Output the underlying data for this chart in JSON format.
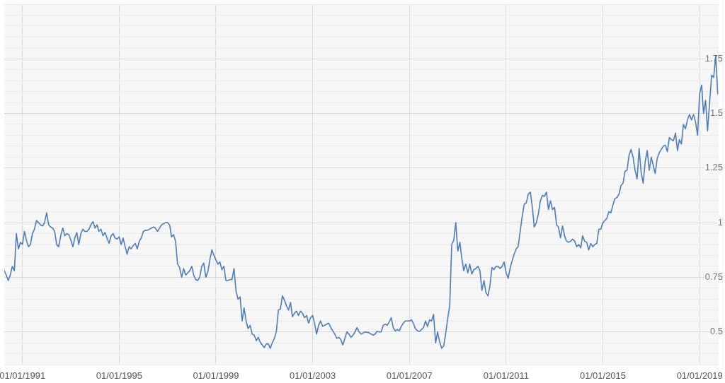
{
  "chart_data": {
    "type": "line",
    "color": "#4a7ebb",
    "marker": "none",
    "grid": true,
    "legend": false,
    "xlim": [
      "1990-04-01",
      "2019-10-15"
    ],
    "xticks": [
      {
        "value": "1991-01-01",
        "label": "01/01/1991"
      },
      {
        "value": "1995-01-01",
        "label": "01/01/1995"
      },
      {
        "value": "1999-01-01",
        "label": "01/01/1999"
      },
      {
        "value": "2003-01-01",
        "label": "01/01/2003"
      },
      {
        "value": "2007-01-01",
        "label": "01/01/2007"
      },
      {
        "value": "2011-01-01",
        "label": "01/01/2011"
      },
      {
        "value": "2015-01-01",
        "label": "01/01/2015"
      },
      {
        "value": "2019-01-01",
        "label": "01/01/2019"
      }
    ],
    "ylim": [
      0.35,
      2.0
    ],
    "yticks": [
      {
        "value": 0.35,
        "label": null
      },
      {
        "value": 0.4,
        "label": null
      },
      {
        "value": 0.45,
        "label": null
      },
      0.5,
      {
        "value": 0.55,
        "label": null
      },
      {
        "value": 0.6,
        "label": null
      },
      {
        "value": 0.65,
        "label": null
      },
      {
        "value": 0.7,
        "label": null
      },
      0.75,
      {
        "value": 0.8,
        "label": null
      },
      {
        "value": 0.85,
        "label": null
      },
      {
        "value": 0.9,
        "label": null
      },
      {
        "value": 0.95,
        "label": null
      },
      1,
      {
        "value": 1.05,
        "label": null
      },
      {
        "value": 1.1,
        "label": null
      },
      {
        "value": 1.15,
        "label": null
      },
      {
        "value": 1.2,
        "label": null
      },
      1.25,
      {
        "value": 1.3,
        "label": null
      },
      {
        "value": 1.35,
        "label": null
      },
      {
        "value": 1.4,
        "label": null
      },
      {
        "value": 1.45,
        "label": null
      },
      1.5,
      {
        "value": 1.55,
        "label": null
      },
      {
        "value": 1.6,
        "label": null
      },
      {
        "value": 1.65,
        "label": null
      },
      {
        "value": 1.7,
        "label": null
      },
      1.75,
      {
        "value": 1.8,
        "label": null
      },
      {
        "value": 1.85,
        "label": null
      },
      {
        "value": 1.9,
        "label": null
      },
      {
        "value": 1.95,
        "label": null
      },
      {
        "value": 2.0,
        "label": null
      }
    ],
    "x": [
      "1990-04",
      "1990-05",
      "1990-06",
      "1990-07",
      "1990-08",
      "1990-09",
      "1990-10",
      "1990-11",
      "1990-12",
      "1991-01",
      "1991-02",
      "1991-03",
      "1991-04",
      "1991-05",
      "1991-06",
      "1991-07",
      "1991-08",
      "1991-09",
      "1991-10",
      "1991-11",
      "1991-12",
      "1992-01",
      "1992-02",
      "1992-03",
      "1992-04",
      "1992-05",
      "1992-06",
      "1992-07",
      "1992-08",
      "1992-09",
      "1992-10",
      "1992-11",
      "1992-12",
      "1993-01",
      "1993-02",
      "1993-03",
      "1993-04",
      "1993-05",
      "1993-06",
      "1993-07",
      "1993-08",
      "1993-09",
      "1993-10",
      "1993-11",
      "1993-12",
      "1994-01",
      "1994-02",
      "1994-03",
      "1994-04",
      "1994-05",
      "1994-06",
      "1994-07",
      "1994-08",
      "1994-09",
      "1994-10",
      "1994-11",
      "1994-12",
      "1995-01",
      "1995-02",
      "1995-03",
      "1995-04",
      "1995-05",
      "1995-06",
      "1995-07",
      "1995-08",
      "1995-09",
      "1995-10",
      "1995-11",
      "1995-12",
      "1996-01",
      "1996-02",
      "1996-03",
      "1996-04",
      "1996-05",
      "1996-06",
      "1996-07",
      "1996-08",
      "1996-09",
      "1996-10",
      "1996-11",
      "1996-12",
      "1997-01",
      "1997-02",
      "1997-03",
      "1997-04",
      "1997-05",
      "1997-06",
      "1997-07",
      "1997-08",
      "1997-09",
      "1997-10",
      "1997-11",
      "1997-12",
      "1998-01",
      "1998-02",
      "1998-03",
      "1998-04",
      "1998-05",
      "1998-06",
      "1998-07",
      "1998-08",
      "1998-09",
      "1998-10",
      "1998-11",
      "1998-12",
      "1999-01",
      "1999-02",
      "1999-03",
      "1999-04",
      "1999-05",
      "1999-06",
      "1999-07",
      "1999-08",
      "1999-09",
      "1999-10",
      "1999-11",
      "1999-12",
      "2000-01",
      "2000-02",
      "2000-03",
      "2000-04",
      "2000-05",
      "2000-06",
      "2000-07",
      "2000-08",
      "2000-09",
      "2000-10",
      "2000-11",
      "2000-12",
      "2001-01",
      "2001-02",
      "2001-03",
      "2001-04",
      "2001-05",
      "2001-06",
      "2001-07",
      "2001-08",
      "2001-09",
      "2001-10",
      "2001-11",
      "2001-12",
      "2002-01",
      "2002-02",
      "2002-03",
      "2002-04",
      "2002-05",
      "2002-06",
      "2002-07",
      "2002-08",
      "2002-09",
      "2002-10",
      "2002-11",
      "2002-12",
      "2003-01",
      "2003-02",
      "2003-03",
      "2003-04",
      "2003-05",
      "2003-06",
      "2003-07",
      "2003-08",
      "2003-09",
      "2003-10",
      "2003-11",
      "2003-12",
      "2004-01",
      "2004-02",
      "2004-03",
      "2004-04",
      "2004-05",
      "2004-06",
      "2004-07",
      "2004-08",
      "2004-09",
      "2004-10",
      "2004-11",
      "2004-12",
      "2005-01",
      "2005-02",
      "2005-03",
      "2005-04",
      "2005-05",
      "2005-06",
      "2005-07",
      "2005-08",
      "2005-09",
      "2005-10",
      "2005-11",
      "2005-12",
      "2006-01",
      "2006-02",
      "2006-03",
      "2006-04",
      "2006-05",
      "2006-06",
      "2006-07",
      "2006-08",
      "2006-09",
      "2006-10",
      "2006-11",
      "2006-12",
      "2007-01",
      "2007-02",
      "2007-03",
      "2007-04",
      "2007-05",
      "2007-06",
      "2007-07",
      "2007-08",
      "2007-09",
      "2007-10",
      "2007-11",
      "2007-12",
      "2008-01",
      "2008-02",
      "2008-03",
      "2008-04",
      "2008-05",
      "2008-06",
      "2008-07",
      "2008-08",
      "2008-09",
      "2008-10",
      "2008-11",
      "2008-12",
      "2009-01",
      "2009-02",
      "2009-03",
      "2009-04",
      "2009-05",
      "2009-06",
      "2009-07",
      "2009-08",
      "2009-09",
      "2009-10",
      "2009-11",
      "2009-12",
      "2010-01",
      "2010-02",
      "2010-03",
      "2010-04",
      "2010-05",
      "2010-06",
      "2010-07",
      "2010-08",
      "2010-09",
      "2010-10",
      "2010-11",
      "2010-12",
      "2011-01",
      "2011-02",
      "2011-03",
      "2011-04",
      "2011-05",
      "2011-06",
      "2011-07",
      "2011-08",
      "2011-09",
      "2011-10",
      "2011-11",
      "2011-12",
      "2012-01",
      "2012-02",
      "2012-03",
      "2012-04",
      "2012-05",
      "2012-06",
      "2012-07",
      "2012-08",
      "2012-09",
      "2012-10",
      "2012-11",
      "2012-12",
      "2013-01",
      "2013-02",
      "2013-03",
      "2013-04",
      "2013-05",
      "2013-06",
      "2013-07",
      "2013-08",
      "2013-09",
      "2013-10",
      "2013-11",
      "2013-12",
      "2014-01",
      "2014-02",
      "2014-03",
      "2014-04",
      "2014-05",
      "2014-06",
      "2014-07",
      "2014-08",
      "2014-09",
      "2014-10",
      "2014-11",
      "2014-12",
      "2015-01",
      "2015-02",
      "2015-03",
      "2015-04",
      "2015-05",
      "2015-06",
      "2015-07",
      "2015-08",
      "2015-09",
      "2015-10",
      "2015-11",
      "2015-12",
      "2016-01",
      "2016-02",
      "2016-03",
      "2016-04",
      "2016-05",
      "2016-06",
      "2016-07",
      "2016-08",
      "2016-09",
      "2016-10",
      "2016-11",
      "2016-12",
      "2017-01",
      "2017-02",
      "2017-03",
      "2017-04",
      "2017-05",
      "2017-06",
      "2017-07",
      "2017-08",
      "2017-09",
      "2017-10",
      "2017-11",
      "2017-12",
      "2018-01",
      "2018-02",
      "2018-03",
      "2018-04",
      "2018-05",
      "2018-06",
      "2018-07",
      "2018-08",
      "2018-09",
      "2018-10",
      "2018-11",
      "2018-12",
      "2019-01",
      "2019-02",
      "2019-03",
      "2019-04",
      "2019-05",
      "2019-06",
      "2019-07",
      "2019-08",
      "2019-09",
      "2019-10"
    ],
    "values": [
      0.78,
      0.76,
      0.735,
      0.76,
      0.8,
      0.78,
      0.95,
      0.88,
      0.91,
      0.9,
      0.96,
      0.92,
      0.89,
      0.9,
      0.95,
      0.97,
      1.01,
      1.0,
      0.99,
      0.985,
      1.0,
      1.045,
      0.99,
      0.98,
      0.975,
      0.96,
      0.9,
      0.89,
      0.94,
      0.975,
      0.94,
      0.95,
      0.945,
      0.92,
      0.89,
      0.93,
      0.955,
      0.9,
      0.95,
      0.97,
      0.96,
      0.96,
      0.97,
      0.99,
      1.005,
      0.975,
      0.99,
      0.96,
      0.97,
      0.94,
      0.955,
      0.93,
      0.905,
      0.94,
      0.95,
      0.93,
      0.925,
      0.935,
      0.9,
      0.93,
      0.89,
      0.855,
      0.89,
      0.88,
      0.895,
      0.905,
      0.88,
      0.915,
      0.93,
      0.96,
      0.965,
      0.965,
      0.97,
      0.975,
      0.98,
      0.975,
      0.96,
      0.975,
      0.99,
      0.995,
      1.0,
      1.0,
      0.99,
      0.935,
      0.945,
      0.915,
      0.81,
      0.795,
      0.75,
      0.79,
      0.76,
      0.77,
      0.78,
      0.8,
      0.758,
      0.74,
      0.735,
      0.75,
      0.8,
      0.815,
      0.75,
      0.775,
      0.83,
      0.876,
      0.85,
      0.83,
      0.81,
      0.82,
      0.785,
      0.8,
      0.735,
      0.735,
      0.74,
      0.74,
      0.79,
      0.685,
      0.65,
      0.66,
      0.55,
      0.61,
      0.55,
      0.515,
      0.53,
      0.49,
      0.485,
      0.46,
      0.475,
      0.452,
      0.44,
      0.428,
      0.445,
      0.445,
      0.425,
      0.45,
      0.47,
      0.5,
      0.6,
      0.605,
      0.665,
      0.645,
      0.62,
      0.6,
      0.635,
      0.57,
      0.585,
      0.595,
      0.575,
      0.595,
      0.585,
      0.565,
      0.575,
      0.54,
      0.565,
      0.575,
      0.535,
      0.49,
      0.53,
      0.55,
      0.525,
      0.53,
      0.535,
      0.54,
      0.52,
      0.505,
      0.49,
      0.47,
      0.475,
      0.465,
      0.44,
      0.47,
      0.5,
      0.49,
      0.475,
      0.485,
      0.5,
      0.52,
      0.5,
      0.49,
      0.495,
      0.5,
      0.498,
      0.496,
      0.49,
      0.485,
      0.49,
      0.503,
      0.5,
      0.5,
      0.53,
      0.535,
      0.53,
      0.545,
      0.565,
      0.52,
      0.505,
      0.51,
      0.505,
      0.525,
      0.54,
      0.55,
      0.55,
      0.55,
      0.555,
      0.54,
      0.515,
      0.505,
      0.502,
      0.51,
      0.52,
      0.55,
      0.525,
      0.555,
      0.55,
      0.58,
      0.45,
      0.5,
      0.455,
      0.425,
      0.435,
      0.49,
      0.56,
      0.62,
      0.9,
      0.92,
      1.0,
      0.87,
      0.91,
      0.84,
      0.78,
      0.81,
      0.77,
      0.81,
      0.765,
      0.785,
      0.79,
      0.8,
      0.78,
      0.69,
      0.735,
      0.68,
      0.665,
      0.71,
      0.795,
      0.785,
      0.8,
      0.8,
      0.79,
      0.8,
      0.82,
      0.77,
      0.745,
      0.79,
      0.825,
      0.855,
      0.88,
      0.89,
      0.96,
      1.03,
      1.085,
      1.09,
      1.13,
      1.14,
      1.07,
      0.98,
      1.0,
      1.04,
      1.1,
      1.125,
      1.12,
      1.14,
      1.06,
      1.1,
      1.06,
      1.07,
      0.99,
      0.98,
      0.93,
      0.985,
      0.94,
      0.915,
      0.91,
      0.915,
      0.925,
      0.915,
      0.89,
      0.9,
      0.885,
      0.94,
      0.915,
      0.91,
      0.875,
      0.905,
      0.89,
      0.9,
      0.905,
      0.97,
      0.97,
      1.0,
      1.01,
      1.02,
      1.05,
      1.045,
      1.08,
      1.11,
      1.115,
      1.13,
      1.17,
      1.18,
      1.235,
      1.24,
      1.31,
      1.335,
      1.3,
      1.24,
      1.2,
      1.34,
      1.23,
      1.18,
      1.28,
      1.33,
      1.24,
      1.3,
      1.26,
      1.225,
      1.295,
      1.32,
      1.335,
      1.35,
      1.355,
      1.325,
      1.39,
      1.38,
      1.375,
      1.41,
      1.33,
      1.38,
      1.36,
      1.45,
      1.43,
      1.47,
      1.495,
      1.47,
      1.495,
      1.46,
      1.4,
      1.59,
      1.63,
      1.5,
      1.56,
      1.42,
      1.55,
      1.675,
      1.665,
      1.765,
      1.59
    ]
  }
}
